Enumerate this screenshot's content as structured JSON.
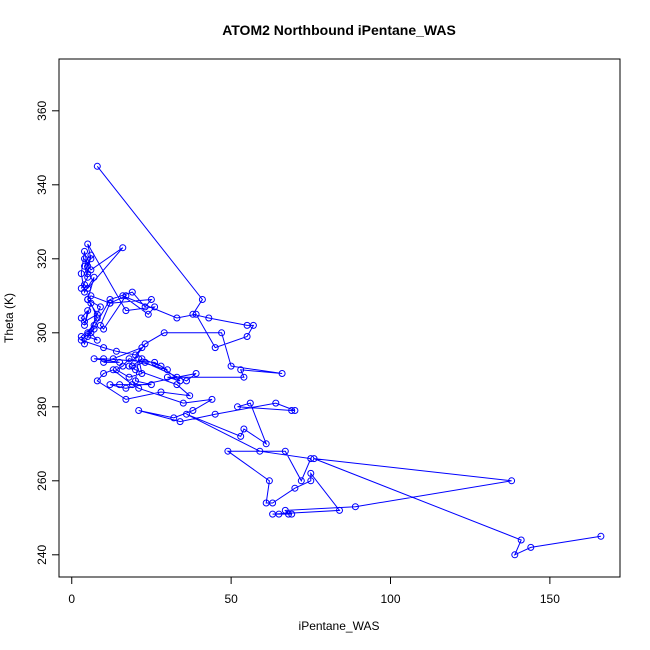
{
  "chart_data": {
    "type": "line",
    "title": "ATOM2 Northbound iPentane_WAS",
    "xlabel": "iPentane_WAS",
    "ylabel": "Theta (K)",
    "xlim": [
      -4,
      172
    ],
    "ylim": [
      234,
      374
    ],
    "xticks": [
      0,
      50,
      100,
      150
    ],
    "yticks": [
      240,
      260,
      280,
      300,
      320,
      340,
      360
    ],
    "grid": false,
    "legend": "none",
    "color": "#0000ff",
    "series": [
      {
        "x": [
          8,
          41,
          38,
          43,
          55,
          57,
          55,
          45,
          39,
          33,
          16,
          24,
          26,
          17,
          5,
          6,
          4,
          5,
          3,
          4,
          5,
          16,
          6,
          4,
          5,
          6,
          5,
          4,
          3,
          4,
          7,
          5,
          8,
          4,
          3,
          5,
          4,
          6,
          8,
          5,
          7,
          3,
          4,
          9,
          5,
          6,
          12,
          9,
          10,
          17,
          12,
          25,
          23,
          19,
          12,
          6,
          8,
          5,
          7,
          3,
          10,
          14,
          20,
          22,
          13,
          10,
          15,
          7,
          10,
          26,
          30,
          18,
          16,
          14,
          18,
          22,
          21,
          20,
          25,
          15,
          12,
          17,
          33,
          39,
          36,
          23,
          19,
          22,
          28,
          34,
          30,
          54,
          53,
          66,
          50,
          47,
          29,
          23,
          18,
          20,
          33,
          37,
          28,
          17,
          8,
          10,
          13,
          19,
          21,
          35,
          44,
          38,
          32,
          21,
          34,
          45,
          64,
          70,
          69,
          52,
          56,
          61,
          54,
          53,
          36,
          59,
          75,
          72,
          67,
          49,
          62,
          61,
          63,
          70,
          75,
          75,
          84,
          63,
          65,
          69,
          68,
          67,
          89,
          138,
          76,
          141,
          139,
          144,
          166
        ],
        "y": [
          345,
          309,
          305,
          304,
          302,
          302,
          299,
          296,
          305,
          304,
          310,
          305,
          307,
          306,
          324,
          320,
          318,
          315,
          312,
          313,
          312,
          323,
          317,
          320,
          316,
          321,
          318,
          322,
          316,
          311,
          315,
          309,
          305,
          303,
          304,
          306,
          302,
          308,
          304,
          300,
          302,
          299,
          297,
          307,
          309,
          310,
          308,
          302,
          301,
          310,
          308,
          309,
          307,
          311,
          309,
          300,
          298,
          299,
          301,
          298,
          296,
          295,
          294,
          296,
          293,
          292,
          292,
          293,
          293,
          292,
          290,
          293,
          291,
          290,
          288,
          289,
          293,
          287,
          286,
          286,
          286,
          285,
          288,
          289,
          287,
          292,
          291,
          293,
          291,
          287,
          288,
          288,
          290,
          289,
          291,
          300,
          300,
          297,
          291,
          290,
          286,
          283,
          284,
          282,
          287,
          289,
          290,
          286,
          285,
          281,
          282,
          279,
          277,
          279,
          276,
          278,
          281,
          279,
          279,
          280,
          281,
          270,
          274,
          272,
          278,
          268,
          266,
          260,
          268,
          268,
          260,
          254,
          254,
          258,
          260,
          262,
          252,
          251,
          251,
          251,
          251,
          252,
          253,
          260,
          266,
          244,
          240,
          242,
          245
        ]
      }
    ]
  }
}
